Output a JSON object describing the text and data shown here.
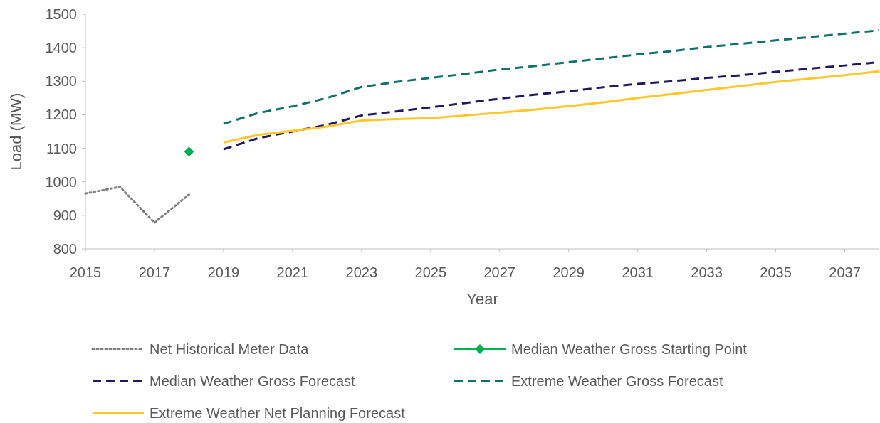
{
  "chart_data": {
    "type": "line",
    "xlabel": "Year",
    "ylabel": "Load (MW)",
    "xlim": [
      2015,
      2038
    ],
    "xticks": [
      2015,
      2017,
      2019,
      2021,
      2023,
      2025,
      2027,
      2029,
      2031,
      2033,
      2035,
      2037
    ],
    "ylim": [
      800,
      1500
    ],
    "yticks": [
      800,
      900,
      1000,
      1100,
      1200,
      1300,
      1400,
      1500
    ],
    "grid": false,
    "legend": "bottom",
    "series": [
      {
        "name": "Net Historical Meter Data",
        "color": "#7f7f7f",
        "line_style": "dotted",
        "marker": "none",
        "x": [
          2015,
          2016,
          2017,
          2018
        ],
        "values": [
          965,
          985,
          878,
          962
        ]
      },
      {
        "name": "Median Weather Gross Starting Point",
        "color": "#00b050",
        "line_style": "solid",
        "marker": "diamond",
        "x": [
          2018
        ],
        "values": [
          1090
        ]
      },
      {
        "name": "Median Weather Gross Forecast",
        "color": "#1f1a5e",
        "line_style": "dashed",
        "marker": "none",
        "x": [
          2019,
          2020,
          2021,
          2022,
          2023,
          2024,
          2025,
          2026,
          2027,
          2028,
          2029,
          2030,
          2031,
          2032,
          2033,
          2034,
          2035,
          2036,
          2037,
          2038
        ],
        "values": [
          1097,
          1130,
          1150,
          1170,
          1198,
          1210,
          1222,
          1235,
          1248,
          1260,
          1270,
          1282,
          1292,
          1300,
          1310,
          1318,
          1328,
          1338,
          1347,
          1357
        ]
      },
      {
        "name": "Extreme Weather Gross Forecast",
        "color": "#10706b",
        "line_style": "dashed",
        "marker": "none",
        "x": [
          2019,
          2020,
          2021,
          2022,
          2023,
          2024,
          2025,
          2026,
          2027,
          2028,
          2029,
          2030,
          2031,
          2032,
          2033,
          2034,
          2035,
          2036,
          2037,
          2038
        ],
        "values": [
          1173,
          1205,
          1225,
          1250,
          1283,
          1298,
          1310,
          1322,
          1335,
          1345,
          1357,
          1368,
          1380,
          1390,
          1402,
          1412,
          1422,
          1432,
          1442,
          1452
        ]
      },
      {
        "name": "Extreme Weather Net Planning Forecast",
        "color": "#ffc72c",
        "line_style": "solid",
        "marker": "none",
        "x": [
          2019,
          2020,
          2021,
          2022,
          2023,
          2024,
          2025,
          2026,
          2027,
          2028,
          2029,
          2030,
          2031,
          2032,
          2033,
          2034,
          2035,
          2036,
          2037,
          2038
        ],
        "values": [
          1117,
          1140,
          1152,
          1165,
          1183,
          1187,
          1190,
          1198,
          1206,
          1215,
          1226,
          1237,
          1250,
          1262,
          1274,
          1286,
          1298,
          1308,
          1318,
          1330
        ]
      }
    ]
  }
}
